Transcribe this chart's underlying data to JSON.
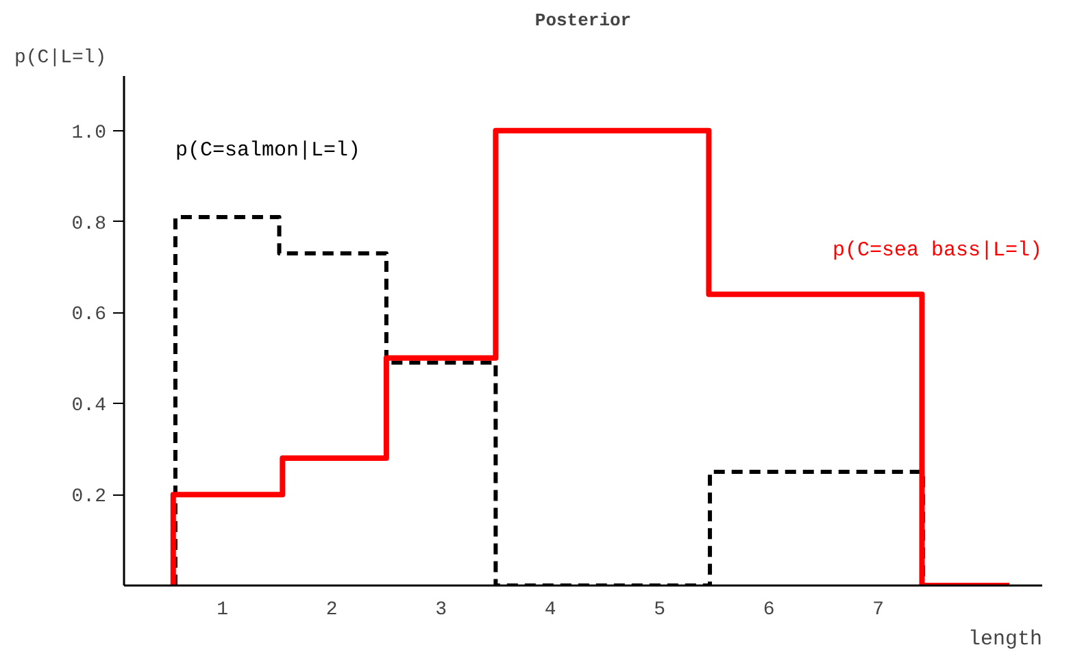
{
  "chart_data": {
    "type": "step",
    "title": "Posterior",
    "xlabel": "length",
    "ylabel": "p(C|L=l)",
    "xlim": [
      0.1,
      8.5
    ],
    "ylim": [
      0,
      1.12
    ],
    "xticks": [
      1,
      2,
      3,
      4,
      5,
      6,
      7
    ],
    "yticks": [
      0.2,
      0.4,
      0.6,
      0.8,
      {
        "value": 1,
        "label": "1.0"
      }
    ],
    "grid": false,
    "series": [
      {
        "name": "p(C=salmon|L=l)",
        "color": "#000000",
        "line_style": "dashed",
        "x": [
          0.57,
          0.57,
          1.52,
          2.5,
          3.5,
          5.46,
          7.41
        ],
        "values": [
          0,
          0.81,
          0.73,
          0.49,
          0,
          0.25,
          0
        ]
      },
      {
        "name": "p(C=sea bass|L=l)",
        "color": "#ff0000",
        "line_style": "solid",
        "x": [
          0.55,
          0.55,
          1.55,
          2.5,
          3.5,
          5.45,
          7.4,
          8.2
        ],
        "values": [
          0,
          0.2,
          0.28,
          0.5,
          1.0,
          0.64,
          0,
          0
        ]
      }
    ]
  }
}
